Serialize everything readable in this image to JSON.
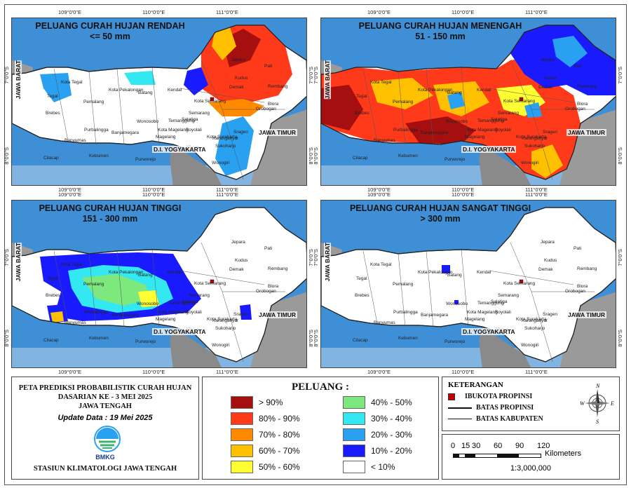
{
  "colors": {
    "sea": "#3f8fd6",
    "land_outside": "#9a9a9a",
    "java_base": "#ffffff",
    "c90": "#a50f0f",
    "c80": "#ff3a1a",
    "c70": "#ff8a00",
    "c60": "#ffc000",
    "c50": "#ffff33",
    "c40": "#7de87d",
    "c30": "#33e8f0",
    "c20": "#2aa0f0",
    "c10": "#1a1aff",
    "c0": "#ffffff"
  },
  "coords": {
    "top_x": [
      "109°0'0\"E",
      "110°0'0\"E",
      "111°0'0\"E"
    ],
    "bottom_x": [
      "109°0'0\"E",
      "110°0'0\"E",
      "111°0'0\"E"
    ],
    "left_y": [
      "7°0'0\"S",
      "8°0'0\"S"
    ]
  },
  "maps": [
    {
      "title": "PELUANG CURAH HUJAN RENDAH",
      "subtitle": "<= 50 mm"
    },
    {
      "title": "PELUANG CURAH HUJAN MENENGAH",
      "subtitle": "51 - 150 mm"
    },
    {
      "title": "PELUANG CURAH HUJAN TINGGI",
      "subtitle": "151 - 300 mm"
    },
    {
      "title": "PELUANG CURAH HUJAN SANGAT TINGGI",
      "subtitle": "> 300 mm"
    }
  ],
  "regions": {
    "west": "JAWA BARAT",
    "east": "JAWA TIMUR",
    "south": "D.I. YOGYAKARTA"
  },
  "places": [
    "Kota Tegal",
    "Brebes",
    "Pemalang",
    "Kota Pekalongan",
    "Batang",
    "Kendal",
    "Kota Semarang",
    "Demak",
    "Kudus",
    "Jepara",
    "Pati",
    "Rembang",
    "Blora",
    "Grobogan",
    "Semarang",
    "Salatiga",
    "Temanggung",
    "Wonosobo",
    "Purbalingga",
    "Banjarnegara",
    "Banyumas",
    "Cilacap",
    "Kebumen",
    "Purworejo",
    "Kota Magelang",
    "Magelang",
    "Boyolali",
    "Klaten",
    "Sukoharjo",
    "Karanganyar",
    "Sragen",
    "Wonogiri",
    "Tegal",
    "Kota Surakarta"
  ],
  "info": {
    "title_line1": "PETA PREDIKSI PROBABILISTIK CURAH HUJAN",
    "title_line2": "DASARIAN KE - 3 MEI 2025",
    "title_line3": "JAWA TENGAH",
    "update": "Update Data : 19 Mei 2025",
    "logo_text": "BMKG",
    "station": "STASIUN KLIMATOLOGI JAWA TENGAH"
  },
  "legend": {
    "title": "PELUANG :",
    "items": [
      {
        "label": "> 90%",
        "color": "#a50f0f"
      },
      {
        "label": "80% - 90%",
        "color": "#ff3a1a"
      },
      {
        "label": "70% - 80%",
        "color": "#ff8a00"
      },
      {
        "label": "60% - 70%",
        "color": "#ffc000"
      },
      {
        "label": "50% - 60%",
        "color": "#ffff33"
      },
      {
        "label": "40% - 50%",
        "color": "#7de87d"
      },
      {
        "label": "30% - 40%",
        "color": "#33e8f0"
      },
      {
        "label": "20% - 30%",
        "color": "#2aa0f0"
      },
      {
        "label": "10% - 20%",
        "color": "#1a1aff"
      },
      {
        "label": "< 10%",
        "color": "#ffffff"
      }
    ]
  },
  "keterangan": {
    "title": "KETERANGAN",
    "ibukota": "IBUKOTA PROPINSI",
    "batas_propinsi": "BATAS PROPINSI",
    "batas_kabupaten": "BATAS KABUPATEN"
  },
  "scale": {
    "ticks": [
      "0",
      "15",
      "30",
      "60",
      "90",
      "120"
    ],
    "unit": "Kilometers",
    "ratio": "1:3,000,000"
  },
  "compass": {
    "n": "N",
    "e": "E",
    "s": "S",
    "w": "W"
  }
}
